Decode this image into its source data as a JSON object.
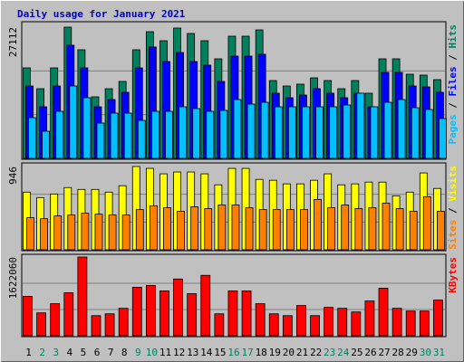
{
  "chart_data": [
    {
      "type": "bar",
      "title": "Daily usage for January 2021",
      "ylim": [
        0,
        27112
      ],
      "yticks": [
        27112
      ],
      "gridlines": [
        9037,
        18075
      ],
      "legend_separator": "/",
      "series": [
        {
          "name": "Hits",
          "color": "#00805c",
          "values": [
            18698,
            14397,
            18698,
            27112,
            22438,
            12715,
            14397,
            15893,
            22438,
            26177,
            24307,
            26925,
            25803,
            24307,
            20568,
            25242,
            25242,
            26551,
            16080,
            14958,
            15332,
            16641,
            16080,
            14397,
            16080,
            13462,
            20568,
            20568,
            17389,
            17202,
            16267
          ]
        },
        {
          "name": "Files",
          "color": "#0000ff",
          "values": [
            14958,
            10658,
            14958,
            23373,
            18698,
            10658,
            12154,
            13650,
            18698,
            22999,
            20007,
            21877,
            20007,
            19259,
            15893,
            21129,
            21129,
            21503,
            13463,
            12528,
            13089,
            14397,
            13463,
            12528,
            13463,
            10658,
            17763,
            17763,
            14958,
            14771,
            13650
          ]
        },
        {
          "name": "Pages",
          "color": "#00c0ff",
          "values": [
            8414,
            5609,
            9723,
            14958,
            12528,
            7292,
            9349,
            9349,
            7853,
            9723,
            9723,
            10658,
            10284,
            9723,
            9910,
            12154,
            11219,
            11593,
            10658,
            10658,
            10658,
            10658,
            10658,
            11032,
            13462,
            10658,
            11593,
            12154,
            10471,
            10097,
            8227
          ]
        }
      ]
    },
    {
      "type": "bar",
      "ylim": [
        0,
        946
      ],
      "yticks": [
        946
      ],
      "gridlines": [
        315,
        631
      ],
      "legend_separator": "/",
      "series": [
        {
          "name": "Visits",
          "color": "#ffff00",
          "values": [
            655,
            593,
            634,
            707,
            686,
            686,
            655,
            728,
            946,
            925,
            863,
            884,
            884,
            863,
            738,
            925,
            925,
            800,
            790,
            749,
            749,
            790,
            863,
            738,
            749,
            769,
            769,
            613,
            655,
            873,
            697
          ]
        },
        {
          "name": "Sites",
          "color": "#ff8000",
          "values": [
            364,
            353,
            385,
            395,
            416,
            405,
            395,
            395,
            457,
            499,
            478,
            437,
            489,
            468,
            509,
            509,
            478,
            457,
            457,
            457,
            457,
            572,
            478,
            509,
            468,
            478,
            530,
            468,
            437,
            603,
            437
          ]
        }
      ]
    },
    {
      "type": "bar",
      "ylim": [
        0,
        1622060
      ],
      "yticks": [
        1622060
      ],
      "gridlines": [
        540687,
        1081373
      ],
      "categories": [
        "1",
        "2",
        "3",
        "4",
        "5",
        "6",
        "7",
        "8",
        "9",
        "10",
        "11",
        "12",
        "13",
        "14",
        "15",
        "16",
        "17",
        "18",
        "19",
        "20",
        "21",
        "22",
        "23",
        "24",
        "25",
        "26",
        "27",
        "28",
        "29",
        "30",
        "31"
      ],
      "category_colors": [
        "#000000",
        "#00805c",
        "#00805c",
        "#000000",
        "#000000",
        "#000000",
        "#000000",
        "#000000",
        "#00805c",
        "#00805c",
        "#000000",
        "#000000",
        "#000000",
        "#000000",
        "#000000",
        "#00805c",
        "#00805c",
        "#000000",
        "#000000",
        "#000000",
        "#000000",
        "#000000",
        "#00805c",
        "#00805c",
        "#000000",
        "#000000",
        "#000000",
        "#000000",
        "#000000",
        "#00805c",
        "#00805c"
      ],
      "series": [
        {
          "name": "KBytes",
          "color": "#ff0000",
          "values": [
            811023,
            471525,
            660135,
            886467,
            1622060,
            414942,
            452664,
            565830,
            999633,
            1037355,
            924189,
            1169382,
            867606,
            1244826,
            452664,
            924189,
            924189,
            660135,
            452664,
            414942,
            622413,
            414942,
            584691,
            565830,
            490386,
            716718,
            980772,
            565830,
            509247,
            509247,
            735579
          ]
        }
      ]
    }
  ]
}
